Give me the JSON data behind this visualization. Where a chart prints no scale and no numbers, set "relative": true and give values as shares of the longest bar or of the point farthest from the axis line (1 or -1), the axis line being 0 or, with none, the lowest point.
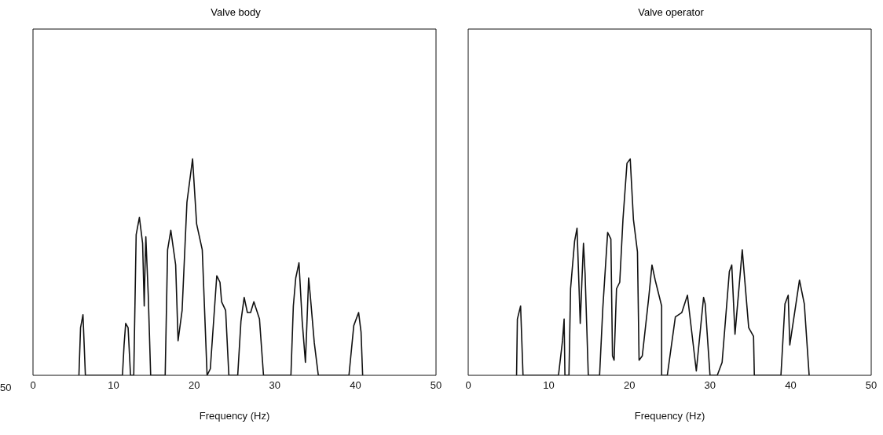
{
  "chart_data": [
    {
      "type": "line",
      "title": "Valve body",
      "xlabel": "Frequency (Hz)",
      "relative": true,
      "xlim": [
        0,
        50
      ],
      "xticks": [
        0,
        10,
        20,
        30,
        40,
        50
      ],
      "marker": "none",
      "annotations": [
        "50"
      ],
      "series": [
        {
          "color": "#111111",
          "x": [
            5.7,
            5.9,
            6.2,
            6.5,
            11.1,
            11.3,
            11.5,
            11.8,
            12.1,
            12.5,
            12.8,
            13.2,
            13.6,
            13.8,
            13.9,
            14.0,
            14.3,
            14.6,
            16.4,
            16.7,
            17.1,
            17.7,
            18.0,
            18.5,
            19.1,
            19.8,
            20.3,
            21.0,
            21.6,
            22.0,
            22.8,
            23.2,
            23.4,
            23.9,
            24.3,
            25.4,
            25.8,
            26.2,
            26.6,
            27.0,
            27.4,
            28.1,
            28.6,
            32.0,
            32.3,
            32.6,
            33.0,
            33.4,
            33.8,
            34.2,
            34.4,
            34.9,
            35.4,
            39.2,
            39.8,
            40.4,
            40.7,
            40.9
          ],
          "values": [
            0,
            0.22,
            0.28,
            0,
            0,
            0.14,
            0.24,
            0.22,
            0,
            0,
            0.65,
            0.73,
            0.61,
            0.32,
            0.5,
            0.64,
            0.37,
            0,
            0,
            0.58,
            0.67,
            0.51,
            0.16,
            0.3,
            0.8,
            1.0,
            0.7,
            0.58,
            0,
            0.03,
            0.46,
            0.43,
            0.34,
            0.3,
            0,
            0,
            0.25,
            0.36,
            0.29,
            0.29,
            0.34,
            0.26,
            0,
            0,
            0.32,
            0.45,
            0.52,
            0.25,
            0.06,
            0.45,
            0.37,
            0.15,
            0,
            0,
            0.23,
            0.29,
            0.2,
            0
          ]
        }
      ]
    },
    {
      "type": "line",
      "title": "Valve operator",
      "xlabel": "Frequency (Hz)",
      "relative": true,
      "xlim": [
        0,
        50
      ],
      "xticks": [
        0,
        10,
        20,
        30,
        40,
        50
      ],
      "marker": "none",
      "series": [
        {
          "color": "#111111",
          "x": [
            6.0,
            6.1,
            6.5,
            6.8,
            11.2,
            11.7,
            11.9,
            12.0,
            12.5,
            12.7,
            13.2,
            13.5,
            13.9,
            14.1,
            14.3,
            14.5,
            14.9,
            16.3,
            16.7,
            17.3,
            17.7,
            17.9,
            18.1,
            18.4,
            18.8,
            19.2,
            19.7,
            20.1,
            20.5,
            21.0,
            21.2,
            21.6,
            22.4,
            22.8,
            23.2,
            24.0,
            24.0,
            24.7,
            25.7,
            26.5,
            27.2,
            28.3,
            29.2,
            29.4,
            30.0,
            30.9,
            31.5,
            32.4,
            32.7,
            33.1,
            34.0,
            34.8,
            35.4,
            35.5,
            38.8,
            39.3,
            39.7,
            39.9,
            41.1,
            41.7,
            42.3
          ],
          "values": [
            0,
            0.26,
            0.32,
            0,
            0,
            0.16,
            0.26,
            0,
            0,
            0.4,
            0.62,
            0.68,
            0.24,
            0.43,
            0.61,
            0.47,
            0,
            0,
            0.31,
            0.66,
            0.63,
            0.09,
            0.07,
            0.4,
            0.43,
            0.72,
            0.98,
            1.0,
            0.72,
            0.57,
            0.07,
            0.09,
            0.36,
            0.51,
            0.44,
            0.32,
            0,
            0,
            0.27,
            0.29,
            0.37,
            0.02,
            0.36,
            0.33,
            0,
            0,
            0.06,
            0.48,
            0.51,
            0.19,
            0.58,
            0.22,
            0.18,
            0,
            0,
            0.33,
            0.37,
            0.14,
            0.44,
            0.33,
            0
          ]
        }
      ]
    }
  ]
}
